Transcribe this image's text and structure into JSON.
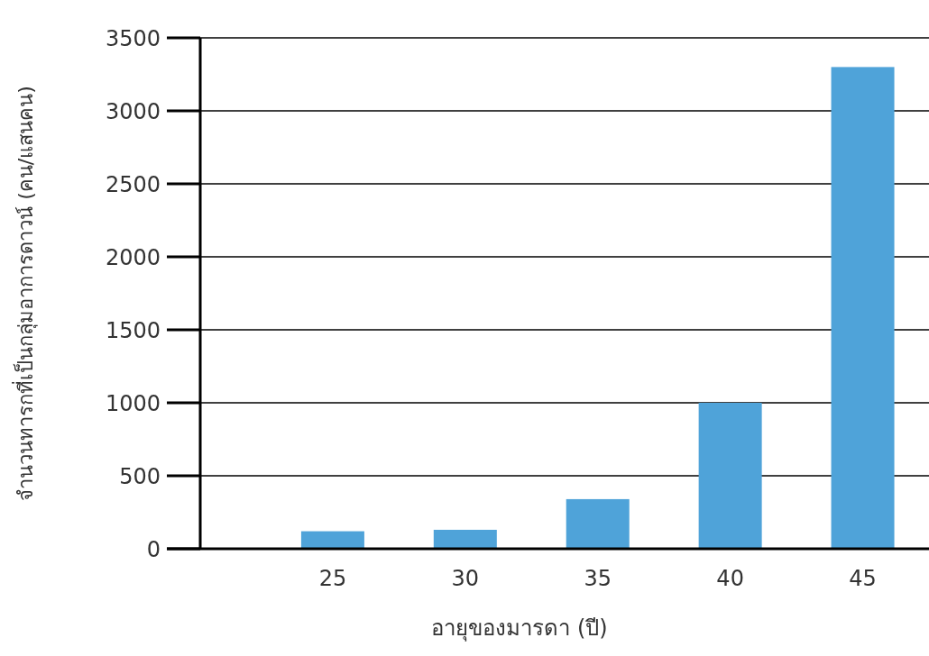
{
  "chart_data": {
    "type": "bar",
    "xlabel": "อายุของมารดา (ปี)",
    "ylabel": "จำนวนทารกที่เป็นกลุ่มอาการดาวน์ (คน/แสนคน)",
    "categories": [
      "25",
      "30",
      "35",
      "40",
      "45"
    ],
    "values": [
      120,
      130,
      340,
      1000,
      3300
    ],
    "color": "#4fa3d9",
    "ylim": [
      0,
      3500
    ],
    "yticks": [
      0,
      500,
      1000,
      1500,
      2000,
      2500,
      3000,
      3500
    ],
    "grid": "y"
  }
}
